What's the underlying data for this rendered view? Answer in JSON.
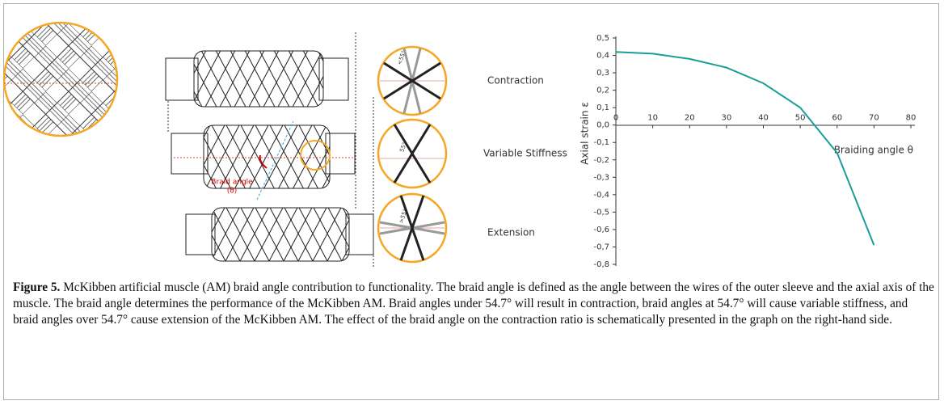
{
  "chart_data": {
    "type": "line",
    "y_label": "Axial strain ε",
    "x_label": "Braiding angle θ",
    "x": [
      0,
      10,
      20,
      30,
      40,
      50,
      60,
      70
    ],
    "series": [
      {
        "color": "#1a9e97",
        "values": [
          0.42,
          0.41,
          0.38,
          0.33,
          0.24,
          0.1,
          -0.16,
          -0.69
        ]
      }
    ],
    "xlim": [
      0,
      80
    ],
    "ylim": [
      -0.8,
      0.5
    ],
    "xticks": [
      0,
      10,
      20,
      30,
      40,
      50,
      60,
      70,
      80
    ],
    "yticks": [
      {
        "value": 0.5,
        "label": "0,5"
      },
      {
        "value": 0.4,
        "label": "0,4"
      },
      {
        "value": 0.3,
        "label": "0,3"
      },
      {
        "value": 0.2,
        "label": "0,2"
      },
      {
        "value": 0.1,
        "label": "0,1"
      },
      {
        "value": 0,
        "label": "0,0"
      },
      {
        "value": -0.1,
        "label": "-0,1"
      },
      {
        "value": -0.2,
        "label": "-0,2"
      },
      {
        "value": -0.3,
        "label": "-0,3"
      },
      {
        "value": -0.4,
        "label": "-0,4"
      },
      {
        "value": -0.5,
        "label": "-0,5"
      },
      {
        "value": -0.6,
        "label": "-0,6"
      },
      {
        "value": -0.7,
        "label": "-0,7"
      },
      {
        "value": -0.8,
        "label": "-0,8"
      }
    ]
  },
  "diagram": {
    "braid_angle": "Braid angle",
    "theta": "(θ)",
    "contraction": "Contraction",
    "variable_stiffness": "Variable Stiffness",
    "extension": "Extension",
    "angle_contraction": "<55°",
    "angle_variable": "55°",
    "angle_extension": ">55°"
  },
  "caption": {
    "label": "Figure 5.",
    "text": "McKibben artificial muscle (AM) braid angle contribution to functionality. The braid angle is defined as the angle between the wires of the outer sleeve and the axial axis of the muscle. The braid angle determines the performance of the McKibben AM. Braid angles under 54.7° will result in contraction, braid angles at 54.7° will cause variable stiffness, and braid angles over 54.7° cause extension of the McKibben AM. The effect of the braid angle on the contraction ratio is schematically presented in the graph on the right-hand side."
  }
}
